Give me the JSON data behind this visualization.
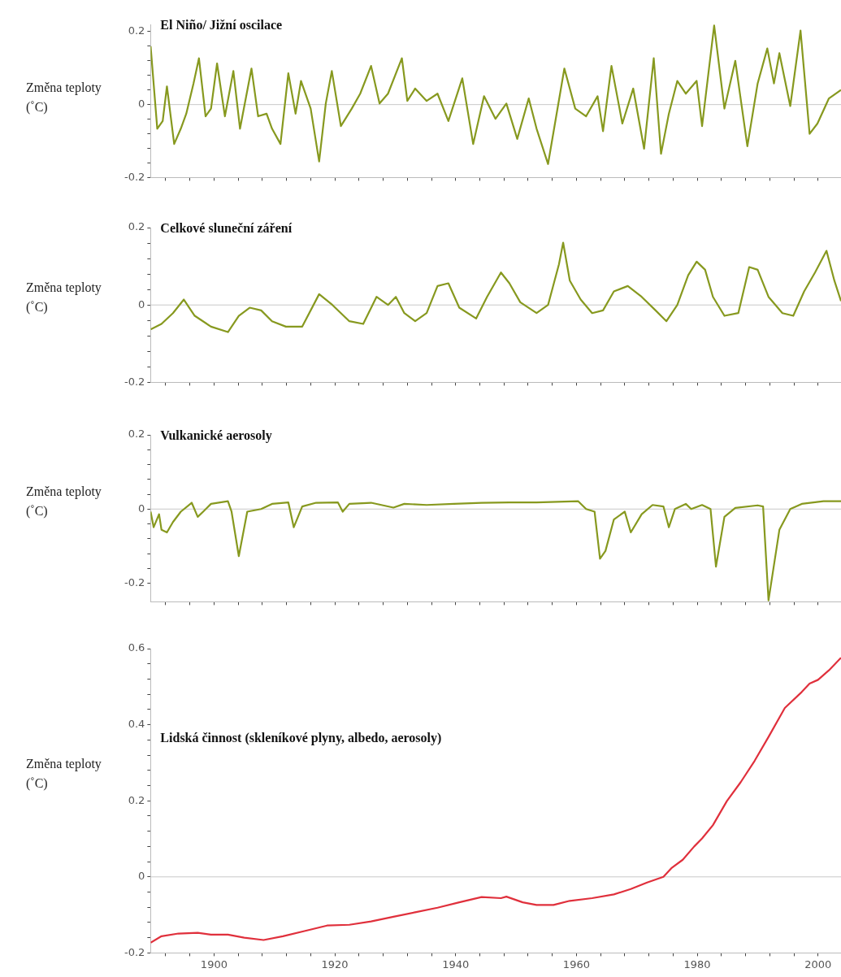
{
  "chart_data": [
    {
      "type": "line",
      "title": "El Niño/ Jižní oscilace",
      "ylabel": "Změna teploty (˚C)",
      "xlim": [
        1889.5,
        2003.8
      ],
      "ylim": [
        -0.2,
        0.22
      ],
      "xticks": [
        {
          "value": 1892,
          "label": null
        },
        {
          "value": 1896,
          "label": null
        },
        1900,
        {
          "value": 1904,
          "label": null
        },
        {
          "value": 1908,
          "label": null
        },
        {
          "value": 1912,
          "label": null
        },
        {
          "value": 1916,
          "label": null
        },
        1920,
        {
          "value": 1924,
          "label": null
        },
        {
          "value": 1928,
          "label": null
        },
        {
          "value": 1932,
          "label": null
        },
        {
          "value": 1936,
          "label": null
        },
        1940,
        {
          "value": 1944,
          "label": null
        },
        {
          "value": 1948,
          "label": null
        },
        {
          "value": 1952,
          "label": null
        },
        {
          "value": 1956,
          "label": null
        },
        1960,
        {
          "value": 1964,
          "label": null
        },
        {
          "value": 1968,
          "label": null
        },
        {
          "value": 1972,
          "label": null
        },
        {
          "value": 1976,
          "label": null
        },
        1980,
        {
          "value": 1984,
          "label": null
        },
        {
          "value": 1988,
          "label": null
        },
        {
          "value": 1992,
          "label": null
        },
        {
          "value": 1996,
          "label": null
        },
        2000
      ],
      "yticks": [
        -0.2,
        {
          "value": -0.16,
          "label": null
        },
        {
          "value": -0.12,
          "label": null
        },
        {
          "value": -0.08,
          "label": null
        },
        {
          "value": -0.04,
          "label": null
        },
        0,
        {
          "value": 0.04,
          "label": null
        },
        {
          "value": 0.08,
          "label": null
        },
        {
          "value": 0.12,
          "label": null
        },
        {
          "value": 0.16,
          "label": null
        },
        0.2
      ],
      "tick_labels": "y",
      "grid": false,
      "legend": false,
      "ref_lines": [
        {
          "axis": "y",
          "value": 0,
          "color": "#c8c8c8"
        }
      ],
      "series": [
        {
          "color": "#87991f",
          "x": [
            1889.5,
            1890.6,
            1891.5,
            1892.2,
            1893.4,
            1894.5,
            1895.4,
            1896.6,
            1897.5,
            1898.6,
            1899.5,
            1900.5,
            1901.8,
            1903.2,
            1904.3,
            1906.2,
            1907.3,
            1908.7,
            1909.6,
            1911.0,
            1912.3,
            1913.5,
            1914.4,
            1916.0,
            1917.4,
            1918.5,
            1919.5,
            1921.0,
            1922.8,
            1924.2,
            1926.0,
            1927.4,
            1928.8,
            1931.1,
            1932.0,
            1933.3,
            1935.2,
            1937.0,
            1938.8,
            1941.1,
            1942.9,
            1944.7,
            1946.6,
            1948.4,
            1950.2,
            1952.1,
            1953.4,
            1955.3,
            1958.0,
            1959.8,
            1961.6,
            1963.5,
            1964.4,
            1965.8,
            1967.6,
            1969.4,
            1971.2,
            1972.8,
            1974.0,
            1975.3,
            1976.7,
            1978.1,
            1979.9,
            1980.8,
            1982.8,
            1984.5,
            1986.3,
            1988.3,
            1990.0,
            1991.6,
            1992.7,
            1993.6,
            1995.4,
            1997.1,
            1998.6,
            1999.9,
            2001.8,
            2003.8
          ],
          "values": [
            0.16,
            -0.066,
            -0.045,
            0.05,
            -0.108,
            -0.066,
            -0.025,
            0.058,
            0.127,
            -0.032,
            -0.011,
            0.113,
            -0.032,
            0.092,
            -0.066,
            0.099,
            -0.032,
            -0.025,
            -0.066,
            -0.108,
            0.086,
            -0.025,
            0.065,
            -0.011,
            -0.156,
            0.003,
            0.092,
            -0.059,
            -0.011,
            0.03,
            0.106,
            0.003,
            0.03,
            0.127,
            0.01,
            0.044,
            0.01,
            0.03,
            -0.045,
            0.072,
            -0.108,
            0.023,
            -0.039,
            0.003,
            -0.094,
            0.017,
            -0.066,
            -0.163,
            0.099,
            -0.011,
            -0.032,
            0.023,
            -0.073,
            0.106,
            -0.052,
            0.044,
            -0.121,
            0.127,
            -0.135,
            -0.025,
            0.065,
            0.03,
            0.065,
            -0.059,
            0.217,
            -0.011,
            0.12,
            -0.114,
            0.058,
            0.154,
            0.058,
            0.141,
            -0.004,
            0.203,
            -0.08,
            -0.052,
            0.017,
            0.04
          ]
        }
      ]
    },
    {
      "type": "line",
      "title": "Celkové sluneční záření",
      "ylabel": "Změna teploty (˚C)",
      "xlim": [
        1889.5,
        2003.8
      ],
      "ylim": [
        -0.2,
        0.2
      ],
      "xticks": [
        {
          "value": 1892,
          "label": null
        },
        {
          "value": 1896,
          "label": null
        },
        1900,
        {
          "value": 1904,
          "label": null
        },
        {
          "value": 1908,
          "label": null
        },
        {
          "value": 1912,
          "label": null
        },
        {
          "value": 1916,
          "label": null
        },
        1920,
        {
          "value": 1924,
          "label": null
        },
        {
          "value": 1928,
          "label": null
        },
        {
          "value": 1932,
          "label": null
        },
        {
          "value": 1936,
          "label": null
        },
        1940,
        {
          "value": 1944,
          "label": null
        },
        {
          "value": 1948,
          "label": null
        },
        {
          "value": 1952,
          "label": null
        },
        {
          "value": 1956,
          "label": null
        },
        1960,
        {
          "value": 1964,
          "label": null
        },
        {
          "value": 1968,
          "label": null
        },
        {
          "value": 1972,
          "label": null
        },
        {
          "value": 1976,
          "label": null
        },
        1980,
        {
          "value": 1984,
          "label": null
        },
        {
          "value": 1988,
          "label": null
        },
        {
          "value": 1992,
          "label": null
        },
        {
          "value": 1996,
          "label": null
        },
        2000
      ],
      "yticks": [
        -0.2,
        {
          "value": -0.16,
          "label": null
        },
        {
          "value": -0.12,
          "label": null
        },
        {
          "value": -0.08,
          "label": null
        },
        {
          "value": -0.04,
          "label": null
        },
        0,
        {
          "value": 0.04,
          "label": null
        },
        {
          "value": 0.08,
          "label": null
        },
        {
          "value": 0.12,
          "label": null
        },
        {
          "value": 0.16,
          "label": null
        },
        0.2
      ],
      "tick_labels": "y",
      "grid": false,
      "legend": false,
      "ref_lines": [
        {
          "axis": "y",
          "value": 0,
          "color": "#c8c8c8"
        }
      ],
      "series": [
        {
          "color": "#87991f",
          "x": [
            1889.5,
            1891.3,
            1893.2,
            1895.0,
            1896.8,
            1899.5,
            1902.3,
            1904.1,
            1905.9,
            1907.8,
            1909.6,
            1911.9,
            1914.6,
            1917.4,
            1919.6,
            1922.4,
            1924.7,
            1926.9,
            1928.8,
            1930.1,
            1931.5,
            1933.3,
            1935.2,
            1937.0,
            1938.8,
            1940.6,
            1943.4,
            1945.2,
            1947.5,
            1948.9,
            1950.7,
            1953.4,
            1955.3,
            1957.1,
            1957.8,
            1958.9,
            1960.7,
            1962.6,
            1964.4,
            1966.2,
            1968.5,
            1970.8,
            1973.1,
            1974.9,
            1976.7,
            1978.5,
            1979.9,
            1981.3,
            1982.6,
            1984.5,
            1986.8,
            1988.6,
            1990.0,
            1991.8,
            1994.1,
            1995.9,
            1997.7,
            1999.5,
            2001.4,
            2002.7,
            2003.8
          ],
          "values": [
            -0.063,
            -0.049,
            -0.021,
            0.014,
            -0.028,
            -0.056,
            -0.07,
            -0.028,
            -0.007,
            -0.014,
            -0.042,
            -0.056,
            -0.056,
            0.028,
            0,
            -0.042,
            -0.049,
            0.021,
            0,
            0.021,
            -0.021,
            -0.042,
            -0.021,
            0.049,
            0.056,
            -0.007,
            -0.035,
            0.021,
            0.084,
            0.056,
            0.007,
            -0.021,
            0,
            0.105,
            0.161,
            0.063,
            0.014,
            -0.021,
            -0.014,
            0.035,
            0.049,
            0.021,
            -0.014,
            -0.042,
            0,
            0.077,
            0.112,
            0.091,
            0.021,
            -0.028,
            -0.021,
            0.098,
            0.091,
            0.021,
            -0.021,
            -0.028,
            0.035,
            0.084,
            0.14,
            0.063,
            0.01
          ]
        }
      ]
    },
    {
      "type": "line",
      "title": "Vulkanické aerosoly",
      "ylabel": "Změna teploty (˚C)",
      "xlim": [
        1889.5,
        2003.8
      ],
      "ylim": [
        -0.25,
        0.2
      ],
      "xticks": [
        {
          "value": 1892,
          "label": null
        },
        {
          "value": 1896,
          "label": null
        },
        1900,
        {
          "value": 1904,
          "label": null
        },
        {
          "value": 1908,
          "label": null
        },
        {
          "value": 1912,
          "label": null
        },
        {
          "value": 1916,
          "label": null
        },
        1920,
        {
          "value": 1924,
          "label": null
        },
        {
          "value": 1928,
          "label": null
        },
        {
          "value": 1932,
          "label": null
        },
        {
          "value": 1936,
          "label": null
        },
        1940,
        {
          "value": 1944,
          "label": null
        },
        {
          "value": 1948,
          "label": null
        },
        {
          "value": 1952,
          "label": null
        },
        {
          "value": 1956,
          "label": null
        },
        1960,
        {
          "value": 1964,
          "label": null
        },
        {
          "value": 1968,
          "label": null
        },
        {
          "value": 1972,
          "label": null
        },
        {
          "value": 1976,
          "label": null
        },
        1980,
        {
          "value": 1984,
          "label": null
        },
        {
          "value": 1988,
          "label": null
        },
        {
          "value": 1992,
          "label": null
        },
        {
          "value": 1996,
          "label": null
        },
        2000
      ],
      "yticks": [
        -0.2,
        {
          "value": -0.16,
          "label": null
        },
        {
          "value": -0.12,
          "label": null
        },
        {
          "value": -0.08,
          "label": null
        },
        {
          "value": -0.04,
          "label": null
        },
        0,
        {
          "value": 0.04,
          "label": null
        },
        {
          "value": 0.08,
          "label": null
        },
        {
          "value": 0.12,
          "label": null
        },
        {
          "value": 0.16,
          "label": null
        },
        0.2
      ],
      "tick_labels": "y",
      "grid": false,
      "legend": false,
      "ref_lines": [
        {
          "axis": "y",
          "value": 0,
          "color": "#c8c8c8"
        }
      ],
      "series": [
        {
          "color": "#87991f",
          "x": [
            1889.5,
            1890.0,
            1890.9,
            1891.3,
            1892.2,
            1893.2,
            1894.5,
            1896.3,
            1897.3,
            1898.2,
            1899.5,
            1902.3,
            1902.9,
            1904.1,
            1905.5,
            1907.8,
            1909.6,
            1912.3,
            1913.2,
            1914.6,
            1916.9,
            1920.5,
            1921.3,
            1922.4,
            1926.0,
            1929.7,
            1931.5,
            1935.2,
            1939.7,
            1944.3,
            1948.9,
            1953.4,
            1960.3,
            1961.6,
            1963.0,
            1963.9,
            1964.8,
            1966.2,
            1968.0,
            1969.0,
            1970.8,
            1972.6,
            1974.4,
            1975.3,
            1976.3,
            1978.1,
            1979.0,
            1980.8,
            1982.2,
            1983.1,
            1984.5,
            1986.3,
            1990.0,
            1990.9,
            1991.8,
            1993.6,
            1995.4,
            1997.3,
            2000.9,
            2003.8
          ],
          "values": [
            -0.007,
            -0.049,
            -0.014,
            -0.056,
            -0.063,
            -0.035,
            -0.007,
            0.017,
            -0.021,
            -0.007,
            0.014,
            0.021,
            -0.007,
            -0.127,
            -0.007,
            0,
            0.014,
            0.018,
            -0.049,
            0.007,
            0.017,
            0.018,
            -0.007,
            0.014,
            0.017,
            0.004,
            0.014,
            0.011,
            0.014,
            0.017,
            0.018,
            0.018,
            0.021,
            0,
            -0.007,
            -0.134,
            -0.113,
            -0.028,
            -0.007,
            -0.063,
            -0.014,
            0.011,
            0.007,
            -0.049,
            0,
            0.014,
            0,
            0.011,
            0,
            -0.155,
            -0.021,
            0.003,
            0.01,
            0.007,
            -0.246,
            -0.056,
            0,
            0.014,
            0.021,
            0.021
          ]
        }
      ]
    },
    {
      "type": "line",
      "title": "Lidská činnost (skleníkové plyny, albedo, aerosoly)",
      "ylabel": "Změna teploty (˚C)",
      "xlim": [
        1889.5,
        2003.8
      ],
      "ylim": [
        -0.2,
        0.6
      ],
      "xticks": [
        {
          "value": 1892,
          "label": null
        },
        {
          "value": 1896,
          "label": null
        },
        1900,
        {
          "value": 1904,
          "label": null
        },
        {
          "value": 1908,
          "label": null
        },
        {
          "value": 1912,
          "label": null
        },
        {
          "value": 1916,
          "label": null
        },
        1920,
        {
          "value": 1924,
          "label": null
        },
        {
          "value": 1928,
          "label": null
        },
        {
          "value": 1932,
          "label": null
        },
        {
          "value": 1936,
          "label": null
        },
        1940,
        {
          "value": 1944,
          "label": null
        },
        {
          "value": 1948,
          "label": null
        },
        {
          "value": 1952,
          "label": null
        },
        {
          "value": 1956,
          "label": null
        },
        1960,
        {
          "value": 1964,
          "label": null
        },
        {
          "value": 1968,
          "label": null
        },
        {
          "value": 1972,
          "label": null
        },
        {
          "value": 1976,
          "label": null
        },
        1980,
        {
          "value": 1984,
          "label": null
        },
        {
          "value": 1988,
          "label": null
        },
        {
          "value": 1992,
          "label": null
        },
        {
          "value": 1996,
          "label": null
        },
        2000
      ],
      "yticks": [
        -0.2,
        {
          "value": -0.16,
          "label": null
        },
        {
          "value": -0.12,
          "label": null
        },
        {
          "value": -0.08,
          "label": null
        },
        {
          "value": -0.04,
          "label": null
        },
        0,
        {
          "value": 0.04,
          "label": null
        },
        {
          "value": 0.08,
          "label": null
        },
        {
          "value": 0.12,
          "label": null
        },
        {
          "value": 0.16,
          "label": null
        },
        0.2,
        {
          "value": 0.24,
          "label": null
        },
        {
          "value": 0.28,
          "label": null
        },
        {
          "value": 0.32,
          "label": null
        },
        {
          "value": 0.36,
          "label": null
        },
        0.4,
        {
          "value": 0.44,
          "label": null
        },
        {
          "value": 0.48,
          "label": null
        },
        {
          "value": 0.52,
          "label": null
        },
        {
          "value": 0.56,
          "label": null
        },
        0.6
      ],
      "grid": false,
      "legend": false,
      "ref_lines": [
        {
          "axis": "y",
          "value": 0,
          "color": "#c8c8c8"
        }
      ],
      "series": [
        {
          "color": "#e0303c",
          "x": [
            1889.5,
            1891.3,
            1894.1,
            1897.3,
            1899.5,
            1902.3,
            1905.0,
            1908.2,
            1911.4,
            1915.1,
            1918.7,
            1922.4,
            1926.0,
            1929.7,
            1933.3,
            1937.0,
            1940.6,
            1944.3,
            1947.5,
            1948.4,
            1951.1,
            1953.4,
            1956.2,
            1958.9,
            1962.6,
            1966.2,
            1969.0,
            1971.7,
            1974.4,
            1975.8,
            1977.6,
            1979.5,
            1980.8,
            1982.6,
            1984.9,
            1987.2,
            1989.5,
            1991.8,
            1994.5,
            1997.3,
            1998.6,
            2000.0,
            2001.8,
            2003.8
          ],
          "values": [
            -0.173,
            -0.156,
            -0.149,
            -0.147,
            -0.152,
            -0.152,
            -0.16,
            -0.166,
            -0.156,
            -0.142,
            -0.128,
            -0.126,
            -0.117,
            -0.105,
            -0.093,
            -0.081,
            -0.067,
            -0.053,
            -0.056,
            -0.052,
            -0.067,
            -0.074,
            -0.074,
            -0.063,
            -0.056,
            -0.046,
            -0.032,
            -0.015,
            0,
            0.024,
            0.045,
            0.08,
            0.101,
            0.136,
            0.199,
            0.249,
            0.305,
            0.368,
            0.444,
            0.486,
            0.508,
            0.518,
            0.543,
            0.576
          ]
        }
      ]
    }
  ]
}
